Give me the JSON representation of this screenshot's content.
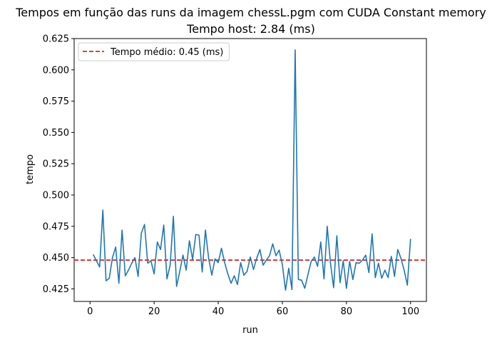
{
  "chart_data": {
    "type": "line",
    "title": "Tempos em função das runs da imagem chessL.pgm com CUDA Constant memory",
    "subtitle": "Tempo host: 2.84 (ms)",
    "xlabel": "run",
    "ylabel": "tempo",
    "xlim": [
      -4.95,
      104.95
    ],
    "ylim": [
      0.415,
      0.625
    ],
    "xticks": [
      0,
      20,
      40,
      60,
      80,
      100
    ],
    "xtick_labels": [
      "0",
      "20",
      "40",
      "60",
      "80",
      "100"
    ],
    "yticks": [
      0.425,
      0.45,
      0.475,
      0.5,
      0.525,
      0.55,
      0.575,
      0.6,
      0.625
    ],
    "ytick_labels": [
      "0.425",
      "0.450",
      "0.475",
      "0.500",
      "0.525",
      "0.550",
      "0.575",
      "0.600",
      "0.625"
    ],
    "grid": false,
    "legend_position": "top-left",
    "series": [
      {
        "name": "",
        "color": "#1f77b4",
        "x": [
          1,
          2,
          3,
          4,
          5,
          6,
          7,
          8,
          9,
          10,
          11,
          12,
          13,
          14,
          15,
          16,
          17,
          18,
          19,
          20,
          21,
          22,
          23,
          24,
          25,
          26,
          27,
          28,
          29,
          30,
          31,
          32,
          33,
          34,
          35,
          36,
          37,
          38,
          39,
          40,
          41,
          42,
          43,
          44,
          45,
          46,
          47,
          48,
          49,
          50,
          51,
          52,
          53,
          54,
          55,
          56,
          57,
          58,
          59,
          60,
          61,
          62,
          63,
          64,
          65,
          66,
          67,
          68,
          69,
          70,
          71,
          72,
          73,
          74,
          75,
          76,
          77,
          78,
          79,
          80,
          81,
          82,
          83,
          84,
          85,
          86,
          87,
          88,
          89,
          90,
          91,
          92,
          93,
          94,
          95,
          96,
          97,
          98,
          99,
          100
        ],
        "values": [
          0.4525,
          0.4475,
          0.4425,
          0.488,
          0.4315,
          0.4335,
          0.45,
          0.4585,
          0.4295,
          0.472,
          0.4355,
          0.44,
          0.4455,
          0.45,
          0.435,
          0.4695,
          0.4765,
          0.4455,
          0.4475,
          0.437,
          0.4625,
          0.4565,
          0.476,
          0.433,
          0.444,
          0.483,
          0.427,
          0.439,
          0.452,
          0.44,
          0.4635,
          0.4485,
          0.4685,
          0.468,
          0.4385,
          0.472,
          0.4495,
          0.436,
          0.449,
          0.446,
          0.4575,
          0.446,
          0.437,
          0.4295,
          0.4355,
          0.4285,
          0.446,
          0.436,
          0.439,
          0.4505,
          0.4405,
          0.4495,
          0.4565,
          0.444,
          0.448,
          0.4515,
          0.461,
          0.4515,
          0.456,
          0.4445,
          0.424,
          0.4415,
          0.4245,
          0.616,
          0.4325,
          0.432,
          0.4255,
          0.4365,
          0.447,
          0.4505,
          0.443,
          0.4625,
          0.433,
          0.475,
          0.446,
          0.426,
          0.4675,
          0.43,
          0.4475,
          0.4255,
          0.447,
          0.4325,
          0.446,
          0.4455,
          0.448,
          0.452,
          0.438,
          0.469,
          0.434,
          0.4455,
          0.4335,
          0.44,
          0.434,
          0.451,
          0.435,
          0.4565,
          0.4495,
          0.44,
          0.428,
          0.465
        ]
      }
    ],
    "mean_line": {
      "value": 0.448,
      "label": "Tempo médio: 0.45 (ms)",
      "color": "#d62728",
      "style": "dashed"
    }
  }
}
